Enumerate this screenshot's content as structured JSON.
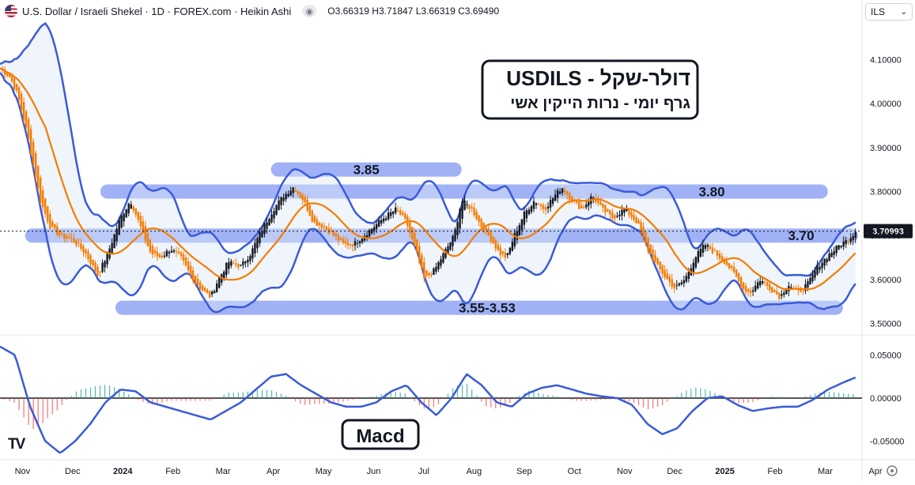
{
  "header": {
    "title": "U.S. Dollar / Israeli Shekel · 1D · FOREX.com · Heikin Ashi",
    "ohlc": "O3.66319 H3.71847 L3.66319 C3.69490",
    "currency": "ILS",
    "flag_icon": "us-flag-icon"
  },
  "colors": {
    "bull": "#131722",
    "bear": "#f57c00",
    "bands": "#3a5bd9",
    "sma": "#f57c00",
    "levels": "#8fa3f5",
    "macd_line": "#3a5bd9",
    "hist_pos": "#26a69a",
    "hist_neg": "#ef5350"
  },
  "chart_data": [
    {
      "type": "candlestick",
      "title_box": {
        "line1": "USDILS - דולר-שקל",
        "line2": "גרף יומי - נרות הייקין אשי"
      },
      "y_ticks": [
        "4.10000",
        "4.00000",
        "3.90000",
        "3.80000",
        "3.70000",
        "3.60000",
        "3.50000"
      ],
      "y_tick_values": [
        4.1,
        4.0,
        3.9,
        3.8,
        3.7,
        3.6,
        3.5
      ],
      "ylim": [
        3.485,
        4.185
      ],
      "last_price": "3.70993",
      "last_price_value": 3.70993,
      "x_ticks": [
        "Nov",
        "Dec",
        "2024",
        "Feb",
        "Mar",
        "Apr",
        "May",
        "Jun",
        "Jul",
        "Aug",
        "Sep",
        "Oct",
        "Nov",
        "Dec",
        "2025",
        "Feb",
        "Mar",
        "Apr"
      ],
      "bold_x_ticks": [
        "2024",
        "2025"
      ],
      "x_tick_months": [
        0,
        1,
        2,
        3,
        4,
        5,
        6,
        7,
        8,
        9,
        10,
        11,
        12,
        13,
        14,
        15,
        16,
        17
      ],
      "xlim_months": [
        -0.1,
        17.08
      ],
      "levels": [
        {
          "label": "3.85",
          "value": 3.85,
          "from": 5.3,
          "to": 9.1
        },
        {
          "label": "3.80",
          "value": 3.8,
          "from": 1.9,
          "to": 16.4
        },
        {
          "label": "3.70",
          "value": 3.7,
          "from": 0.4,
          "to": 17.0
        },
        {
          "label": "3.55-3.53",
          "value": 3.536,
          "from": 2.2,
          "to": 16.7
        }
      ],
      "indicators": [
        "bollinger-bands",
        "sma-20",
        "heikin-ashi"
      ],
      "price_path": [
        [
          -0.1,
          4.08
        ],
        [
          0.1,
          4.06
        ],
        [
          0.25,
          4.02
        ],
        [
          0.45,
          3.93
        ],
        [
          0.7,
          3.78
        ],
        [
          0.9,
          3.72
        ],
        [
          1.1,
          3.7
        ],
        [
          1.35,
          3.69
        ],
        [
          1.6,
          3.66
        ],
        [
          1.85,
          3.61
        ],
        [
          2.05,
          3.66
        ],
        [
          2.3,
          3.74
        ],
        [
          2.5,
          3.78
        ],
        [
          2.7,
          3.72
        ],
        [
          2.9,
          3.66
        ],
        [
          3.1,
          3.65
        ],
        [
          3.3,
          3.67
        ],
        [
          3.5,
          3.65
        ],
        [
          3.7,
          3.61
        ],
        [
          3.9,
          3.58
        ],
        [
          4.1,
          3.56
        ],
        [
          4.25,
          3.6
        ],
        [
          4.45,
          3.64
        ],
        [
          4.7,
          3.63
        ],
        [
          4.9,
          3.66
        ],
        [
          5.1,
          3.71
        ],
        [
          5.35,
          3.76
        ],
        [
          5.55,
          3.79
        ],
        [
          5.75,
          3.81
        ],
        [
          5.95,
          3.78
        ],
        [
          6.15,
          3.73
        ],
        [
          6.35,
          3.72
        ],
        [
          6.55,
          3.7
        ],
        [
          6.75,
          3.68
        ],
        [
          6.95,
          3.68
        ],
        [
          7.15,
          3.7
        ],
        [
          7.35,
          3.72
        ],
        [
          7.55,
          3.74
        ],
        [
          7.8,
          3.76
        ],
        [
          8.0,
          3.73
        ],
        [
          8.2,
          3.66
        ],
        [
          8.35,
          3.6
        ],
        [
          8.55,
          3.62
        ],
        [
          8.75,
          3.66
        ],
        [
          8.95,
          3.7
        ],
        [
          9.1,
          3.78
        ],
        [
          9.3,
          3.76
        ],
        [
          9.5,
          3.72
        ],
        [
          9.7,
          3.69
        ],
        [
          9.85,
          3.66
        ],
        [
          10.0,
          3.65
        ],
        [
          10.15,
          3.7
        ],
        [
          10.35,
          3.75
        ],
        [
          10.55,
          3.78
        ],
        [
          10.75,
          3.76
        ],
        [
          10.95,
          3.79
        ],
        [
          11.1,
          3.81
        ],
        [
          11.3,
          3.78
        ],
        [
          11.5,
          3.76
        ],
        [
          11.7,
          3.79
        ],
        [
          11.9,
          3.76
        ],
        [
          12.1,
          3.74
        ],
        [
          12.35,
          3.76
        ],
        [
          12.6,
          3.73
        ],
        [
          12.8,
          3.67
        ],
        [
          13.0,
          3.63
        ],
        [
          13.2,
          3.6
        ],
        [
          13.35,
          3.58
        ],
        [
          13.55,
          3.6
        ],
        [
          13.75,
          3.65
        ],
        [
          13.95,
          3.68
        ],
        [
          14.15,
          3.66
        ],
        [
          14.35,
          3.64
        ],
        [
          14.55,
          3.61
        ],
        [
          14.7,
          3.58
        ],
        [
          14.85,
          3.57
        ],
        [
          15.05,
          3.6
        ],
        [
          15.25,
          3.58
        ],
        [
          15.45,
          3.56
        ],
        [
          15.6,
          3.59
        ],
        [
          15.8,
          3.57
        ],
        [
          16.0,
          3.59
        ],
        [
          16.2,
          3.63
        ],
        [
          16.45,
          3.66
        ],
        [
          16.65,
          3.68
        ],
        [
          16.8,
          3.69
        ],
        [
          16.95,
          3.71
        ]
      ]
    },
    {
      "type": "macd",
      "label": "Macd",
      "y_ticks": [
        "0.05000",
        "0.00000",
        "-0.05000"
      ],
      "y_tick_values": [
        0.05,
        0.0,
        -0.05
      ],
      "ylim": [
        -0.068,
        0.068
      ],
      "line": [
        [
          -0.1,
          0.06
        ],
        [
          0.2,
          0.05
        ],
        [
          0.5,
          -0.01
        ],
        [
          0.8,
          -0.05
        ],
        [
          1.1,
          -0.064
        ],
        [
          1.4,
          -0.05
        ],
        [
          1.7,
          -0.03
        ],
        [
          2.0,
          -0.005
        ],
        [
          2.3,
          0.01
        ],
        [
          2.6,
          0.008
        ],
        [
          2.9,
          -0.005
        ],
        [
          3.2,
          -0.01
        ],
        [
          3.5,
          -0.015
        ],
        [
          3.8,
          -0.02
        ],
        [
          4.1,
          -0.025
        ],
        [
          4.4,
          -0.015
        ],
        [
          4.7,
          -0.005
        ],
        [
          5.0,
          0.01
        ],
        [
          5.3,
          0.025
        ],
        [
          5.6,
          0.028
        ],
        [
          5.9,
          0.015
        ],
        [
          6.2,
          0.005
        ],
        [
          6.5,
          -0.005
        ],
        [
          6.8,
          -0.01
        ],
        [
          7.1,
          -0.01
        ],
        [
          7.4,
          -0.005
        ],
        [
          7.7,
          0.008
        ],
        [
          8.0,
          0.015
        ],
        [
          8.3,
          -0.005
        ],
        [
          8.6,
          -0.02
        ],
        [
          8.9,
          0.0
        ],
        [
          9.2,
          0.028
        ],
        [
          9.5,
          0.015
        ],
        [
          9.8,
          -0.005
        ],
        [
          10.1,
          -0.01
        ],
        [
          10.4,
          0.005
        ],
        [
          10.7,
          0.012
        ],
        [
          11.0,
          0.015
        ],
        [
          11.3,
          0.01
        ],
        [
          11.6,
          0.005
        ],
        [
          11.9,
          0.002
        ],
        [
          12.2,
          0.0
        ],
        [
          12.5,
          -0.008
        ],
        [
          12.8,
          -0.03
        ],
        [
          13.1,
          -0.042
        ],
        [
          13.4,
          -0.035
        ],
        [
          13.7,
          -0.015
        ],
        [
          14.0,
          0.0
        ],
        [
          14.3,
          0.002
        ],
        [
          14.6,
          -0.008
        ],
        [
          14.9,
          -0.015
        ],
        [
          15.2,
          -0.012
        ],
        [
          15.5,
          -0.01
        ],
        [
          15.8,
          -0.01
        ],
        [
          16.1,
          -0.002
        ],
        [
          16.4,
          0.01
        ],
        [
          16.7,
          0.018
        ],
        [
          16.95,
          0.024
        ]
      ]
    }
  ]
}
